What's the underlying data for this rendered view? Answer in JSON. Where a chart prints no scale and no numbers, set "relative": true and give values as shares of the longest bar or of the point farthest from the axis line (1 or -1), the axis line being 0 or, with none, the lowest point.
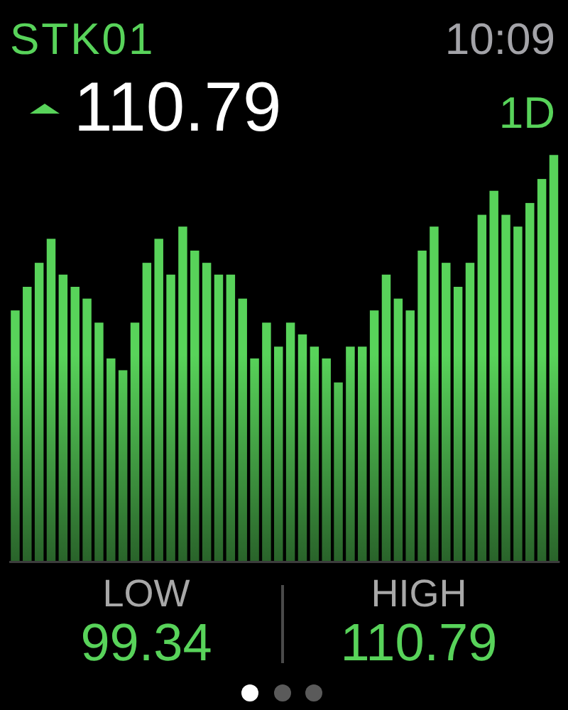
{
  "chart_data": {
    "type": "bar",
    "title": "STK01",
    "subtitle": "110.79",
    "annotations": [
      "10:09",
      "1D",
      "LOW",
      "99.34",
      "HIGH",
      "110.79"
    ],
    "categories": [
      null,
      null,
      null,
      null,
      null,
      null,
      null,
      null,
      null,
      null,
      null,
      null,
      null,
      null,
      null,
      null,
      null,
      null,
      null,
      null,
      null,
      null,
      null,
      null,
      null,
      null,
      null,
      null,
      null,
      null,
      null,
      null,
      null,
      null,
      null,
      null,
      null,
      null,
      null,
      null,
      null,
      null,
      null,
      null,
      null,
      null
    ],
    "values": [
      0.618,
      0.676,
      0.735,
      0.794,
      0.706,
      0.676,
      0.647,
      0.588,
      0.5,
      0.471,
      0.588,
      0.735,
      0.794,
      0.706,
      0.824,
      0.765,
      0.735,
      0.706,
      0.706,
      0.647,
      0.5,
      0.588,
      0.529,
      0.588,
      0.559,
      0.529,
      0.5,
      0.441,
      0.529,
      0.529,
      0.618,
      0.706,
      0.647,
      0.618,
      0.765,
      0.824,
      0.735,
      0.676,
      0.735,
      0.853,
      0.912,
      0.853,
      0.824,
      0.882,
      0.941,
      1
    ],
    "color": "#58d35a",
    "relative": true
  }
}
